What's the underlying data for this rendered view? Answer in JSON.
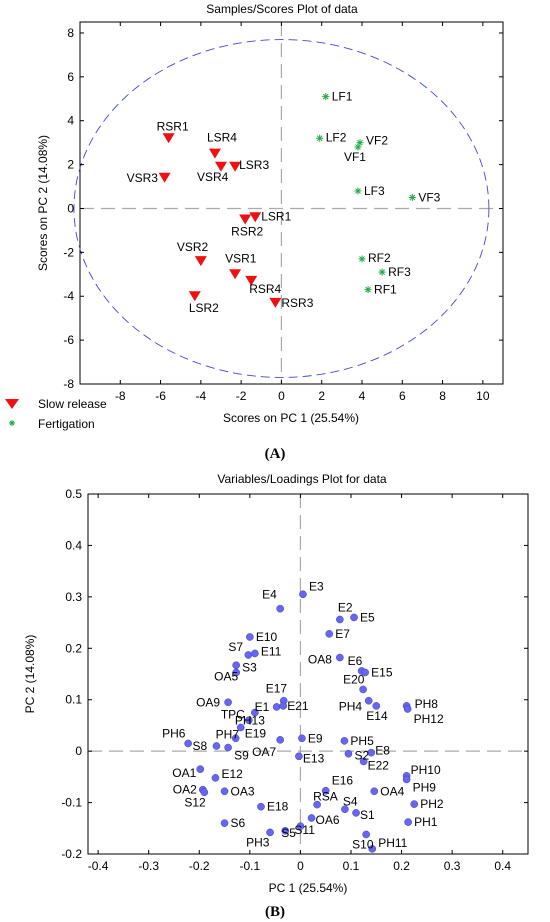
{
  "figure": {
    "panel_a_label": "(A)",
    "panel_b_label": "(B)"
  },
  "chart_data": [
    {
      "type": "scatter",
      "title": "Samples/Scores Plot of data",
      "xlabel": "Scores on PC 1 (25.54%)",
      "ylabel": "Scores on PC 2 (14.08%)",
      "xlim": [
        -10,
        11
      ],
      "ylim": [
        -8,
        8.5
      ],
      "xticks": [
        -8,
        -6,
        -4,
        -2,
        0,
        2,
        4,
        6,
        8,
        10
      ],
      "yticks": [
        -8,
        -6,
        -4,
        -2,
        0,
        2,
        4,
        6,
        8
      ],
      "grid": false,
      "legend_position": "bottom-left-outside",
      "confidence_ellipse": {
        "center": [
          0,
          0
        ],
        "rx": 10.3,
        "ry": 7.7,
        "color": "#4444dd"
      },
      "series": [
        {
          "name": "Slow release",
          "marker": "triangle-down",
          "color": "#ee1111",
          "points": [
            {
              "label": "RSR1",
              "x": -5.6,
              "y": 3.2
            },
            {
              "label": "LSR4",
              "x": -3.3,
              "y": 2.5
            },
            {
              "label": "VSR4",
              "x": -3.0,
              "y": 1.9
            },
            {
              "label": "LSR3",
              "x": -2.3,
              "y": 1.9
            },
            {
              "label": "VSR3",
              "x": -5.8,
              "y": 1.4
            },
            {
              "label": "LSR1",
              "x": -1.3,
              "y": -0.4
            },
            {
              "label": "RSR2",
              "x": -1.8,
              "y": -0.5
            },
            {
              "label": "VSR2",
              "x": -4.0,
              "y": -2.4
            },
            {
              "label": "VSR1",
              "x": -2.3,
              "y": -3.0
            },
            {
              "label": "RSR4",
              "x": -1.5,
              "y": -3.3
            },
            {
              "label": "LSR2",
              "x": -4.3,
              "y": -4.0
            },
            {
              "label": "RSR3",
              "x": -0.3,
              "y": -4.3
            }
          ]
        },
        {
          "name": "Fertigation",
          "marker": "asterisk",
          "color": "#22aa44",
          "points": [
            {
              "label": "LF1",
              "x": 2.2,
              "y": 5.1
            },
            {
              "label": "LF2",
              "x": 1.9,
              "y": 3.2
            },
            {
              "label": "VF2",
              "x": 3.9,
              "y": 3.0
            },
            {
              "label": "VF1",
              "x": 3.8,
              "y": 2.8
            },
            {
              "label": "LF3",
              "x": 3.8,
              "y": 0.8
            },
            {
              "label": "VF3",
              "x": 6.5,
              "y": 0.5
            },
            {
              "label": "RF2",
              "x": 4.0,
              "y": -2.3
            },
            {
              "label": "RF3",
              "x": 5.0,
              "y": -2.9
            },
            {
              "label": "RF1",
              "x": 4.3,
              "y": -3.7
            }
          ]
        }
      ]
    },
    {
      "type": "scatter",
      "title": "Variables/Loadings Plot for data",
      "xlabel": "PC 1 (25.54%)",
      "ylabel": "PC 2 (14.08%)",
      "xlim": [
        -0.42,
        0.45
      ],
      "ylim": [
        -0.2,
        0.5
      ],
      "xticks": [
        -0.4,
        -0.3,
        -0.2,
        -0.1,
        0,
        0.1,
        0.2,
        0.3,
        0.4
      ],
      "yticks": [
        -0.2,
        -0.1,
        0,
        0.1,
        0.2,
        0.3,
        0.4,
        0.5
      ],
      "grid": false,
      "marker_color": "#6666ee",
      "points": [
        {
          "label": "E3",
          "x": 0.005,
          "y": 0.305
        },
        {
          "label": "E4",
          "x": -0.04,
          "y": 0.277
        },
        {
          "label": "E2",
          "x": 0.078,
          "y": 0.256
        },
        {
          "label": "E5",
          "x": 0.106,
          "y": 0.26
        },
        {
          "label": "E7",
          "x": 0.057,
          "y": 0.228
        },
        {
          "label": "E10",
          "x": -0.1,
          "y": 0.222
        },
        {
          "label": "OA8",
          "x": 0.078,
          "y": 0.182
        },
        {
          "label": "S7",
          "x": -0.103,
          "y": 0.187
        },
        {
          "label": "E11",
          "x": -0.09,
          "y": 0.19
        },
        {
          "label": "S3",
          "x": -0.127,
          "y": 0.167
        },
        {
          "label": "E6",
          "x": 0.121,
          "y": 0.156
        },
        {
          "label": "E15",
          "x": 0.128,
          "y": 0.153
        },
        {
          "label": "OA5",
          "x": -0.127,
          "y": 0.153
        },
        {
          "label": "E20",
          "x": 0.124,
          "y": 0.12
        },
        {
          "label": "E17",
          "x": -0.033,
          "y": 0.098
        },
        {
          "label": "OA9",
          "x": -0.143,
          "y": 0.095
        },
        {
          "label": "E1",
          "x": -0.047,
          "y": 0.086
        },
        {
          "label": "E21",
          "x": -0.034,
          "y": 0.088
        },
        {
          "label": "PH4",
          "x": 0.135,
          "y": 0.098
        },
        {
          "label": "PH8",
          "x": 0.21,
          "y": 0.088
        },
        {
          "label": "E14",
          "x": 0.15,
          "y": 0.088
        },
        {
          "label": "PH12",
          "x": 0.212,
          "y": 0.082
        },
        {
          "label": "PH13",
          "x": -0.09,
          "y": 0.075
        },
        {
          "label": "TPC",
          "x": -0.102,
          "y": 0.06
        },
        {
          "label": "E19",
          "x": -0.118,
          "y": 0.046
        },
        {
          "label": "PH6",
          "x": -0.222,
          "y": 0.015
        },
        {
          "label": "PH7",
          "x": -0.128,
          "y": 0.025
        },
        {
          "label": "S8",
          "x": -0.166,
          "y": 0.01
        },
        {
          "label": "S9",
          "x": -0.143,
          "y": 0.007
        },
        {
          "label": "OA7",
          "x": -0.04,
          "y": 0.022
        },
        {
          "label": "E9",
          "x": 0.003,
          "y": 0.025
        },
        {
          "label": "PH5",
          "x": 0.087,
          "y": 0.02
        },
        {
          "label": "S2",
          "x": 0.095,
          "y": -0.005
        },
        {
          "label": "E8",
          "x": 0.14,
          "y": -0.003
        },
        {
          "label": "E13",
          "x": -0.003,
          "y": -0.01
        },
        {
          "label": "E22",
          "x": 0.125,
          "y": -0.02
        },
        {
          "label": "OA1",
          "x": -0.198,
          "y": -0.035
        },
        {
          "label": "E12",
          "x": -0.168,
          "y": -0.052
        },
        {
          "label": "PH10",
          "x": 0.21,
          "y": -0.048
        },
        {
          "label": "PH9",
          "x": 0.21,
          "y": -0.055
        },
        {
          "label": "OA2",
          "x": -0.193,
          "y": -0.075
        },
        {
          "label": "OA3",
          "x": -0.15,
          "y": -0.078
        },
        {
          "label": "OA4",
          "x": 0.146,
          "y": -0.078
        },
        {
          "label": "S12",
          "x": -0.19,
          "y": -0.08
        },
        {
          "label": "E16",
          "x": 0.05,
          "y": -0.077
        },
        {
          "label": "PH2",
          "x": 0.225,
          "y": -0.103
        },
        {
          "label": "E18",
          "x": -0.078,
          "y": -0.108
        },
        {
          "label": "RSA",
          "x": 0.033,
          "y": -0.104
        },
        {
          "label": "S4",
          "x": 0.088,
          "y": -0.113
        },
        {
          "label": "S1",
          "x": 0.11,
          "y": -0.12
        },
        {
          "label": "OA6",
          "x": 0.022,
          "y": -0.13
        },
        {
          "label": "PH1",
          "x": 0.213,
          "y": -0.138
        },
        {
          "label": "S6",
          "x": -0.15,
          "y": -0.14
        },
        {
          "label": "S11",
          "x": 0.0,
          "y": -0.146
        },
        {
          "label": "S5",
          "x": -0.03,
          "y": -0.155
        },
        {
          "label": "PH3",
          "x": -0.06,
          "y": -0.158
        },
        {
          "label": "S10",
          "x": 0.13,
          "y": -0.162
        },
        {
          "label": "PH11",
          "x": 0.142,
          "y": -0.19
        }
      ]
    }
  ]
}
